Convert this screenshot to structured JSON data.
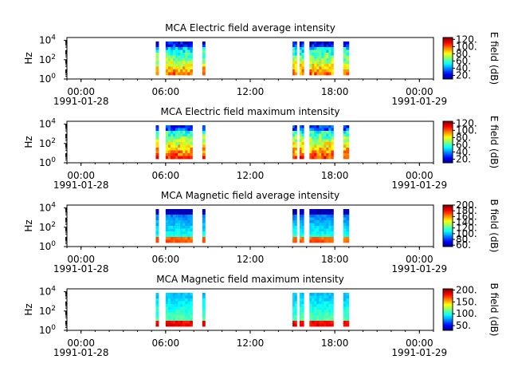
{
  "chart_data": [
    {
      "type": "heatmap",
      "title": "MCA  Electric field average intensity",
      "ylabel": "Hz",
      "colorbar_label": "E field (dB)",
      "colorbar_ticks": [
        "20.",
        "40.",
        "60.",
        "80.",
        "100.",
        "120."
      ],
      "clim": [
        10,
        125
      ],
      "cmap": "jet",
      "ytick_labels": [
        {
          "base": "10",
          "exp": "0"
        },
        {
          "base": "10",
          "exp": "2"
        },
        {
          "base": "10",
          "exp": "4"
        }
      ],
      "ylim_log10": [
        0,
        4.3
      ],
      "profile": "e_avg"
    },
    {
      "type": "heatmap",
      "title": "MCA  Electric field maximum intensity",
      "ylabel": "Hz",
      "colorbar_label": "E field (dB)",
      "colorbar_ticks": [
        "20.",
        "40.",
        "60.",
        "80.",
        "100.",
        "120."
      ],
      "clim": [
        10,
        125
      ],
      "cmap": "jet",
      "ytick_labels": [
        {
          "base": "10",
          "exp": "0"
        },
        {
          "base": "10",
          "exp": "2"
        },
        {
          "base": "10",
          "exp": "4"
        }
      ],
      "ylim_log10": [
        0,
        4.3
      ],
      "profile": "e_max"
    },
    {
      "type": "heatmap",
      "title": "MCA  Magnetic field average intensity",
      "ylabel": "Hz",
      "colorbar_label": "B field (dB)",
      "colorbar_ticks": [
        "60.",
        "80.",
        "100.",
        "120.",
        "140.",
        "160.",
        "180.",
        "200."
      ],
      "clim": [
        55,
        200
      ],
      "cmap": "jet",
      "ytick_labels": [
        {
          "base": "10",
          "exp": "0"
        },
        {
          "base": "10",
          "exp": "2"
        },
        {
          "base": "10",
          "exp": "4"
        }
      ],
      "ylim_log10": [
        0,
        4.3
      ],
      "profile": "b_avg"
    },
    {
      "type": "heatmap",
      "title": "MCA  Magnetic field maximum intensity",
      "ylabel": "Hz",
      "colorbar_label": "B field (dB)",
      "colorbar_ticks": [
        "50.",
        "100.",
        "150.",
        "200."
      ],
      "clim": [
        30,
        205
      ],
      "cmap": "jet",
      "ytick_labels": [
        {
          "base": "10",
          "exp": "0"
        },
        {
          "base": "10",
          "exp": "2"
        },
        {
          "base": "10",
          "exp": "4"
        }
      ],
      "ylim_log10": [
        0,
        4.3
      ],
      "profile": "b_max"
    }
  ],
  "time_axis": {
    "range_hours": [
      -1,
      25
    ],
    "ticks": [
      {
        "hour": 0,
        "time": "00:00",
        "date": "1991-01-28"
      },
      {
        "hour": 6,
        "time": "06:00",
        "date": ""
      },
      {
        "hour": 12,
        "time": "12:00",
        "date": ""
      },
      {
        "hour": 18,
        "time": "18:00",
        "date": ""
      },
      {
        "hour": 24,
        "time": "00:00",
        "date": "1991-01-29"
      }
    ],
    "minor_tick_hours": 1
  },
  "data_intervals_hours": [
    [
      5.3,
      5.5
    ],
    [
      6.0,
      7.9
    ],
    [
      8.6,
      8.8
    ],
    [
      15.0,
      15.3
    ],
    [
      15.5,
      15.8
    ],
    [
      16.2,
      17.9
    ],
    [
      18.6,
      19.0
    ]
  ]
}
